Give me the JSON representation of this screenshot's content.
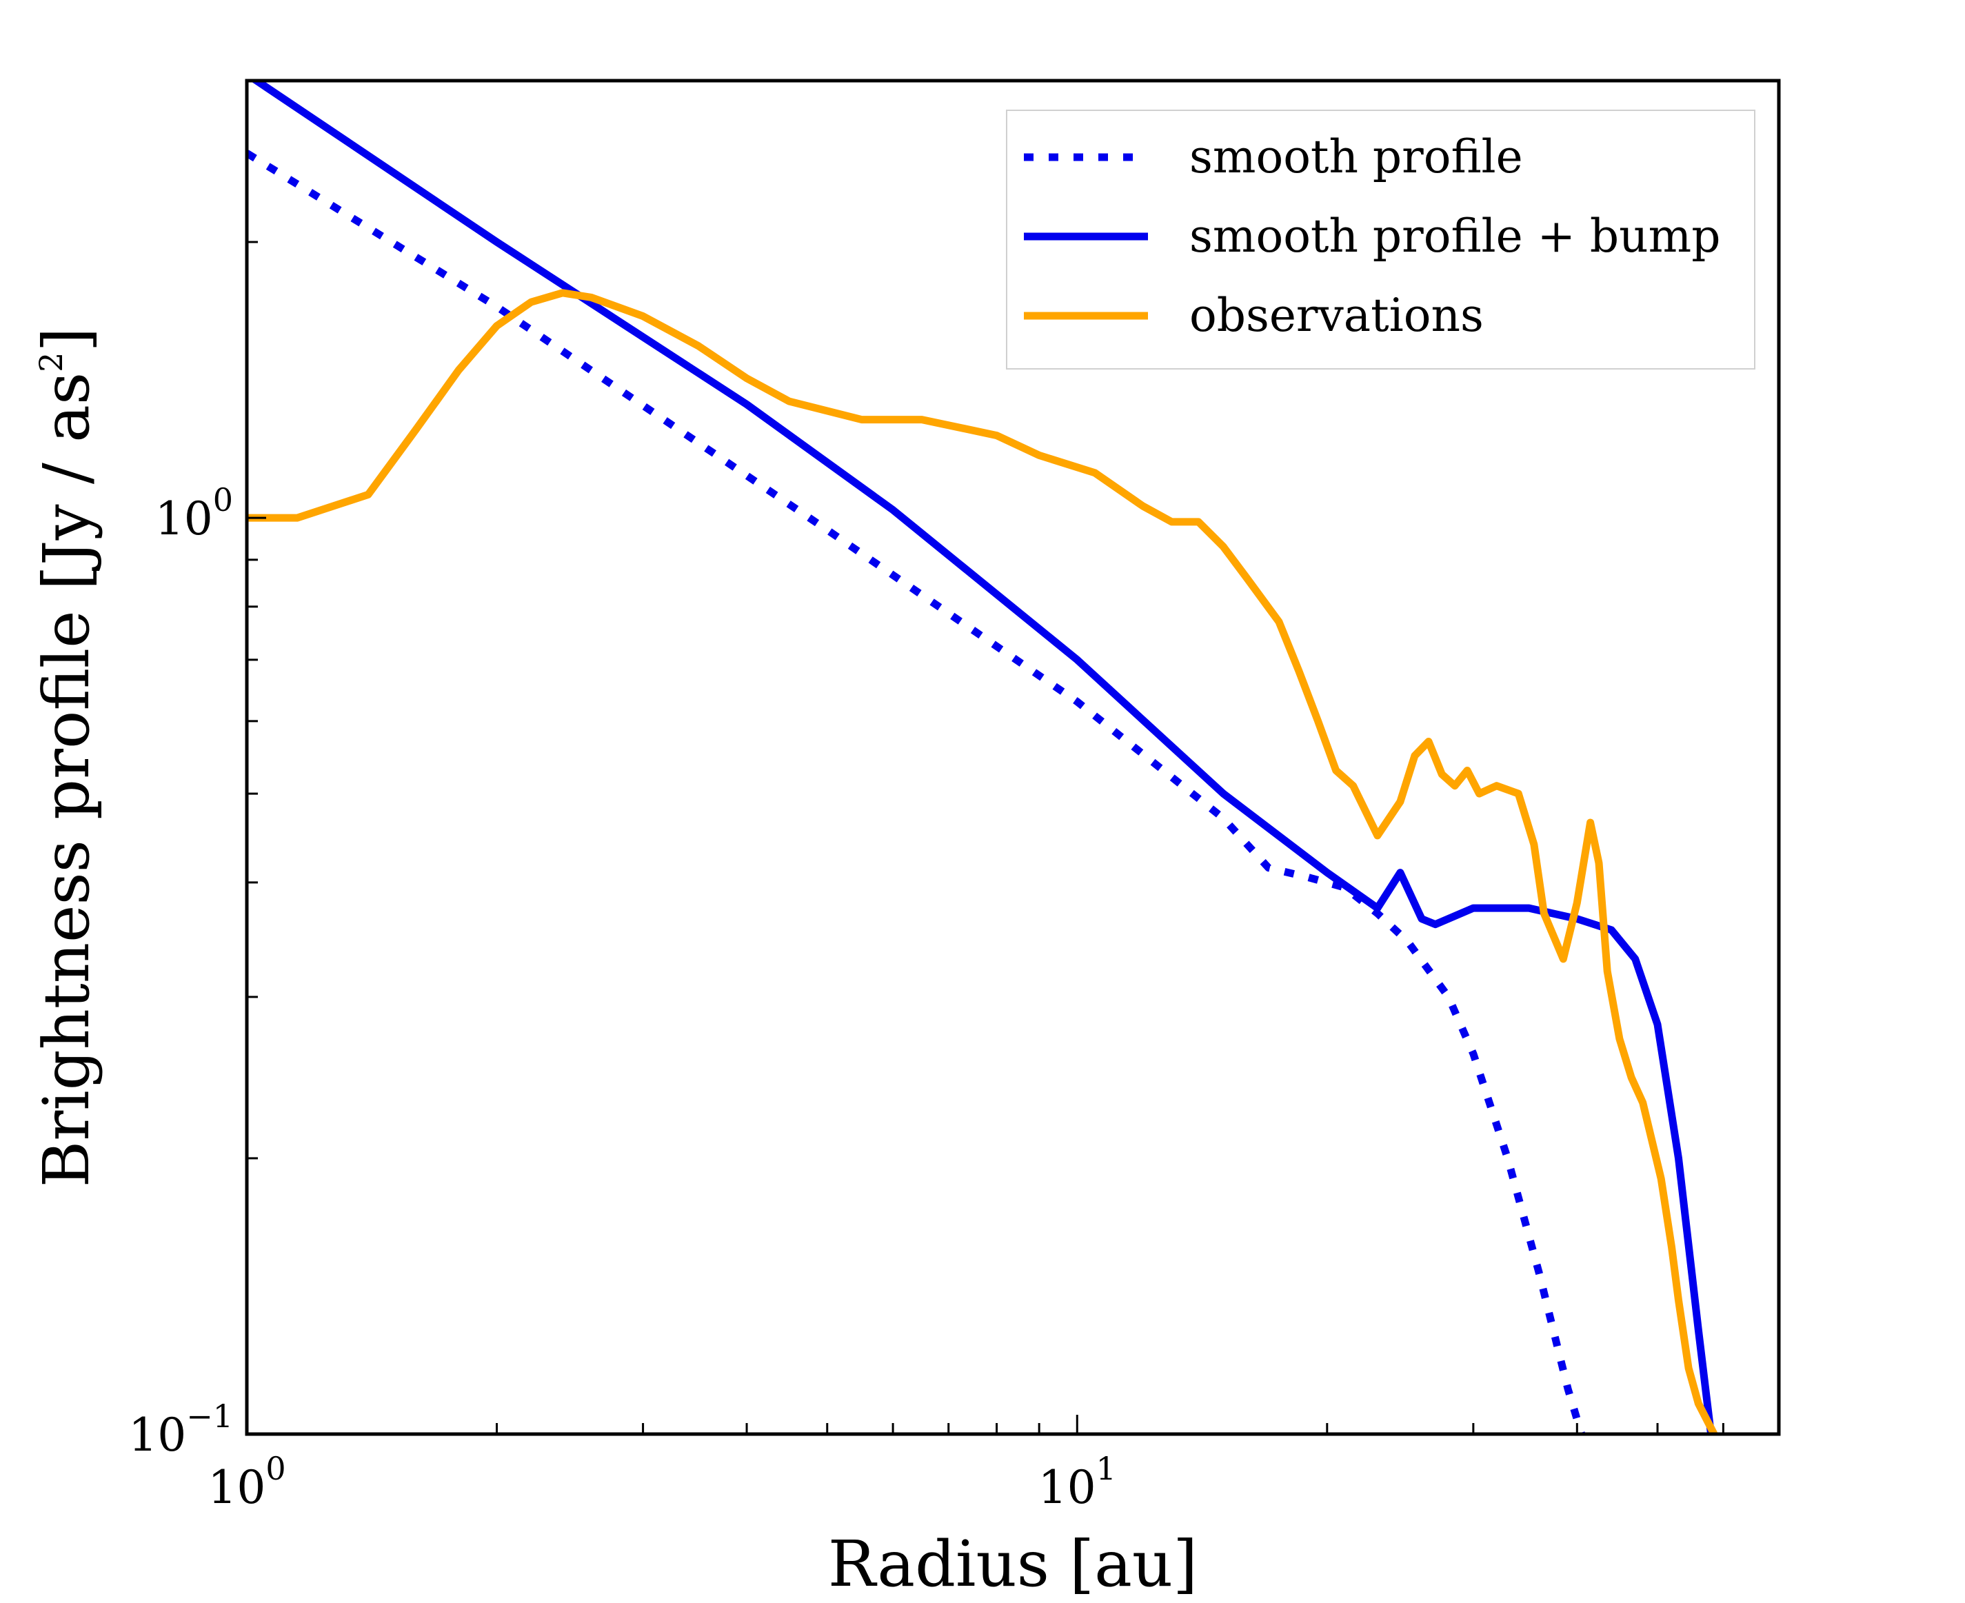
{
  "chart_data": {
    "type": "line",
    "xlabel": "Radius [au]",
    "ylabel": "Brightness profile [Jy / as",
    "ylabel_sup": "2",
    "ylabel_end": "]",
    "x_scale": "log",
    "y_scale": "log",
    "xlim": [
      1.0,
      70.0
    ],
    "ylim": [
      0.1,
      3.0
    ],
    "x_ticks": [
      {
        "value": 1,
        "base": "10",
        "exp": "0"
      },
      {
        "value": 10,
        "base": "10",
        "exp": "1"
      }
    ],
    "y_ticks": [
      {
        "value": 0.1,
        "base": "10",
        "exp": "−1"
      },
      {
        "value": 1,
        "base": "10",
        "exp": "0"
      }
    ],
    "x_minor_ticks": [
      2,
      3,
      4,
      5,
      6,
      7,
      8,
      9,
      20,
      30,
      40,
      50,
      60
    ],
    "y_minor_ticks": [
      0.2,
      0.3,
      0.4,
      0.5,
      0.6,
      0.7,
      0.8,
      0.9,
      2
    ],
    "grid": false,
    "legend_position": "top-right",
    "series": [
      {
        "name": "smooth profile",
        "color": "#0000ee",
        "style": "dotted",
        "points": [
          [
            1.0,
            2.5
          ],
          [
            2.0,
            1.7
          ],
          [
            5.0,
            0.97
          ],
          [
            10.0,
            0.63
          ],
          [
            15.0,
            0.47
          ],
          [
            17.0,
            0.415
          ],
          [
            19.0,
            0.405
          ],
          [
            21.0,
            0.395
          ],
          [
            23.0,
            0.37
          ],
          [
            25.0,
            0.345
          ],
          [
            28.0,
            0.3
          ],
          [
            30.0,
            0.26
          ],
          [
            33.0,
            0.2
          ],
          [
            36.0,
            0.15
          ],
          [
            39.0,
            0.112
          ],
          [
            40.5,
            0.1
          ]
        ]
      },
      {
        "name": "smooth profile + bump",
        "color": "#0000ee",
        "style": "solid",
        "points": [
          [
            1.0,
            3.05
          ],
          [
            2.0,
            2.0
          ],
          [
            4.0,
            1.33
          ],
          [
            6.0,
            1.02
          ],
          [
            10.0,
            0.7
          ],
          [
            15.0,
            0.5
          ],
          [
            20.0,
            0.41
          ],
          [
            23.0,
            0.375
          ],
          [
            24.5,
            0.41
          ],
          [
            26.0,
            0.365
          ],
          [
            27.0,
            0.36
          ],
          [
            30.0,
            0.375
          ],
          [
            35.0,
            0.375
          ],
          [
            40.0,
            0.365
          ],
          [
            44.0,
            0.355
          ],
          [
            47.0,
            0.33
          ],
          [
            50.0,
            0.28
          ],
          [
            53.0,
            0.2
          ],
          [
            56.0,
            0.13
          ],
          [
            58.0,
            0.1
          ]
        ]
      },
      {
        "name": "observations",
        "color": "#ffa500",
        "style": "solid",
        "points": [
          [
            1.0,
            1.0
          ],
          [
            1.15,
            1.0
          ],
          [
            1.4,
            1.06
          ],
          [
            1.6,
            1.25
          ],
          [
            1.8,
            1.45
          ],
          [
            2.0,
            1.62
          ],
          [
            2.2,
            1.72
          ],
          [
            2.4,
            1.76
          ],
          [
            2.6,
            1.74
          ],
          [
            3.0,
            1.66
          ],
          [
            3.5,
            1.54
          ],
          [
            4.0,
            1.42
          ],
          [
            4.5,
            1.34
          ],
          [
            5.5,
            1.28
          ],
          [
            6.5,
            1.28
          ],
          [
            8.0,
            1.23
          ],
          [
            9.0,
            1.17
          ],
          [
            10.5,
            1.12
          ],
          [
            12.0,
            1.03
          ],
          [
            13.0,
            0.99
          ],
          [
            14.0,
            0.99
          ],
          [
            15.0,
            0.93
          ],
          [
            16.0,
            0.86
          ],
          [
            17.5,
            0.77
          ],
          [
            18.5,
            0.68
          ],
          [
            19.5,
            0.6
          ],
          [
            20.5,
            0.53
          ],
          [
            21.5,
            0.51
          ],
          [
            23.0,
            0.45
          ],
          [
            24.5,
            0.49
          ],
          [
            25.5,
            0.55
          ],
          [
            26.5,
            0.57
          ],
          [
            27.5,
            0.525
          ],
          [
            28.5,
            0.51
          ],
          [
            29.5,
            0.53
          ],
          [
            30.5,
            0.5
          ],
          [
            32.0,
            0.51
          ],
          [
            34.0,
            0.5
          ],
          [
            35.5,
            0.44
          ],
          [
            36.5,
            0.37
          ],
          [
            38.5,
            0.33
          ],
          [
            40.0,
            0.38
          ],
          [
            41.5,
            0.465
          ],
          [
            42.5,
            0.42
          ],
          [
            43.5,
            0.32
          ],
          [
            45.0,
            0.27
          ],
          [
            46.5,
            0.245
          ],
          [
            48.0,
            0.23
          ],
          [
            50.5,
            0.19
          ],
          [
            52.0,
            0.16
          ],
          [
            53.0,
            0.14
          ],
          [
            54.5,
            0.118
          ],
          [
            56.0,
            0.108
          ],
          [
            58.5,
            0.1
          ]
        ]
      }
    ]
  }
}
